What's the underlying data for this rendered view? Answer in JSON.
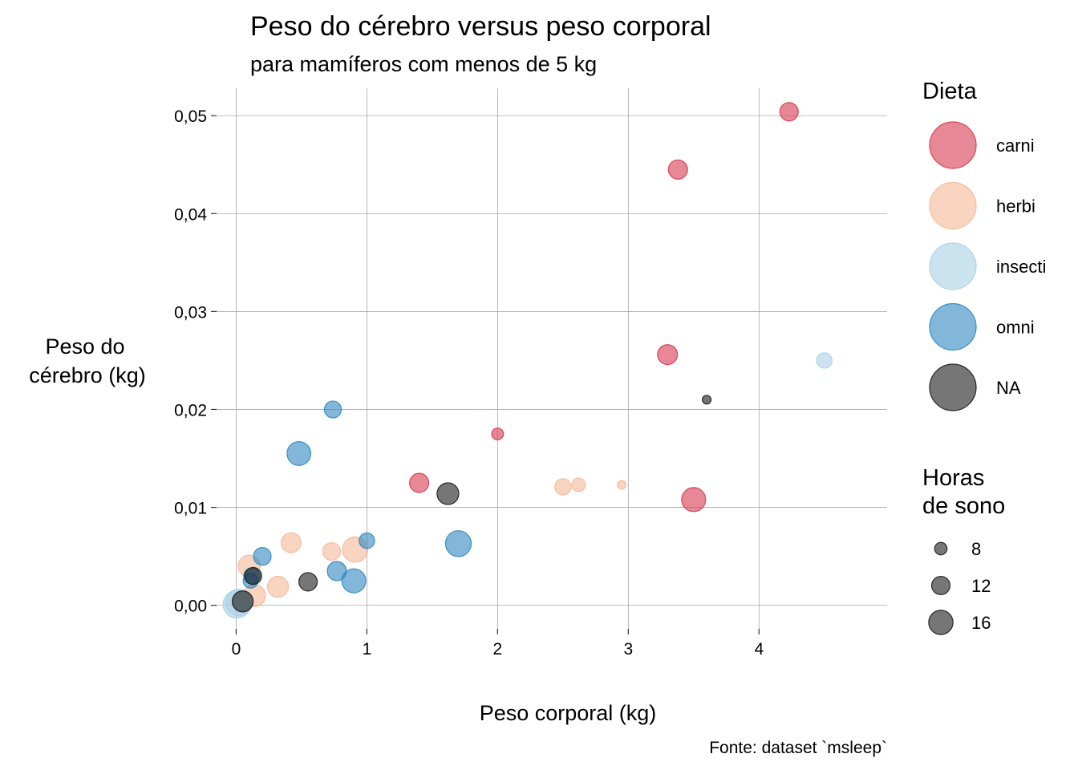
{
  "chart_data": {
    "type": "scatter",
    "title": "Peso do cérebro versus peso corporal",
    "subtitle": "para mamíferos com menos de 5 kg",
    "xlabel": "Peso corporal (kg)",
    "ylabel_lines": [
      "Peso do",
      "cérebro (kg)"
    ],
    "caption": "Fonte: dataset `msleep`",
    "xlim": [
      -0.15,
      4.98
    ],
    "ylim": [
      -0.0024,
      0.0528
    ],
    "xticks": [
      0,
      1,
      2,
      3,
      4
    ],
    "xtick_labels": [
      "0",
      "1",
      "2",
      "3",
      "4"
    ],
    "yticks": [
      0,
      0.01,
      0.02,
      0.03,
      0.04,
      0.05
    ],
    "ytick_labels": [
      "0,00",
      "0,01",
      "0,02",
      "0,03",
      "0,04",
      "0,05"
    ],
    "grid": true,
    "legend_position": "right",
    "color_legend": {
      "title": "Dieta",
      "entries": [
        {
          "key": "carni",
          "label": "carni",
          "color": "#d6384e"
        },
        {
          "key": "herbi",
          "label": "herbi",
          "color": "#f4b898"
        },
        {
          "key": "insecti",
          "label": "insecti",
          "color": "#a9d0e4"
        },
        {
          "key": "omni",
          "label": "omni",
          "color": "#2f87c0"
        },
        {
          "key": "NA",
          "label": "NA",
          "color": "#1a1a1a"
        }
      ]
    },
    "size_legend": {
      "title_lines": [
        "Horas",
        "de sono"
      ],
      "entries": [
        {
          "value": 8,
          "label": "8"
        },
        {
          "value": 12,
          "label": "12"
        },
        {
          "value": 16,
          "label": "16"
        }
      ]
    },
    "series": [
      {
        "name": "carni",
        "points": [
          {
            "x": 4.23,
            "y": 0.0504,
            "sleep": 12.0
          },
          {
            "x": 3.38,
            "y": 0.0445,
            "sleep": 12.5
          },
          {
            "x": 3.3,
            "y": 0.0256,
            "sleep": 13.0
          },
          {
            "x": 2.0,
            "y": 0.0175,
            "sleep": 7.5
          },
          {
            "x": 1.4,
            "y": 0.0125,
            "sleep": 12.5
          },
          {
            "x": 3.5,
            "y": 0.0108,
            "sleep": 15.8
          }
        ]
      },
      {
        "name": "herbi",
        "points": [
          {
            "x": 2.5,
            "y": 0.0121,
            "sleep": 10.5
          },
          {
            "x": 2.62,
            "y": 0.0123,
            "sleep": 8.7
          },
          {
            "x": 2.95,
            "y": 0.0123,
            "sleep": 5.4
          },
          {
            "x": 0.42,
            "y": 0.0064,
            "sleep": 13.0
          },
          {
            "x": 0.73,
            "y": 0.0055,
            "sleep": 11.5
          },
          {
            "x": 0.91,
            "y": 0.0057,
            "sleep": 16.6
          },
          {
            "x": 0.32,
            "y": 0.0019,
            "sleep": 13.7
          },
          {
            "x": 0.1,
            "y": 0.004,
            "sleep": 14.5
          },
          {
            "x": 0.14,
            "y": 0.001,
            "sleep": 14.4
          },
          {
            "x": 0.05,
            "y": 0.0003,
            "sleep": 13.0
          }
        ]
      },
      {
        "name": "insecti",
        "points": [
          {
            "x": 4.5,
            "y": 0.025,
            "sleep": 10.0
          },
          {
            "x": 0.02,
            "y": 0.0003,
            "sleep": 17.4
          },
          {
            "x": 0.005,
            "y": 0.0001,
            "sleep": 18.1
          }
        ]
      },
      {
        "name": "omni",
        "points": [
          {
            "x": 0.74,
            "y": 0.02,
            "sleep": 11.0
          },
          {
            "x": 0.48,
            "y": 0.0155,
            "sleep": 15.6
          },
          {
            "x": 1.7,
            "y": 0.0063,
            "sleep": 17.0
          },
          {
            "x": 1.0,
            "y": 0.0066,
            "sleep": 10.0
          },
          {
            "x": 0.2,
            "y": 0.005,
            "sleep": 11.5
          },
          {
            "x": 0.77,
            "y": 0.0035,
            "sleep": 12.5
          },
          {
            "x": 0.9,
            "y": 0.0025,
            "sleep": 15.8
          },
          {
            "x": 0.11,
            "y": 0.0025,
            "sleep": 9.5
          },
          {
            "x": 0.12,
            "y": 0.003,
            "sleep": 10.5
          }
        ]
      },
      {
        "name": "NA",
        "points": [
          {
            "x": 3.6,
            "y": 0.021,
            "sleep": 5.5
          },
          {
            "x": 1.62,
            "y": 0.0114,
            "sleep": 14.3
          },
          {
            "x": 0.55,
            "y": 0.0024,
            "sleep": 12.0
          },
          {
            "x": 0.13,
            "y": 0.003,
            "sleep": 11.0
          },
          {
            "x": 0.05,
            "y": 0.0004,
            "sleep": 13.7
          }
        ]
      }
    ]
  }
}
